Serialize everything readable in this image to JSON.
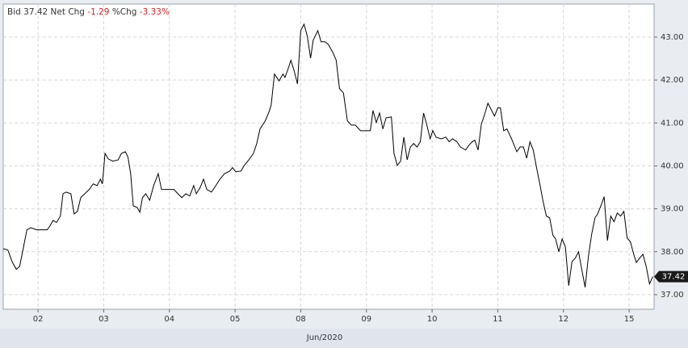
{
  "chart_data": {
    "type": "line",
    "bid_label": "Bid",
    "bid": 37.42,
    "net_chg_label": "Net Chg",
    "net_chg": -1.29,
    "pct_chg_label": "%Chg",
    "pct_chg": {
      "value": -3.33,
      "label": "-3.33%"
    },
    "xlabel": "Jun/2020",
    "color": "#000000",
    "grid": true,
    "xlim": [
      -0.53,
      9.38
    ],
    "ylim": [
      36.66,
      43.77
    ],
    "xticks": [
      {
        "value": 0,
        "label": "02"
      },
      {
        "value": 1,
        "label": "03"
      },
      {
        "value": 2,
        "label": "04"
      },
      {
        "value": 3,
        "label": "05"
      },
      {
        "value": 4,
        "label": "08"
      },
      {
        "value": 5,
        "label": "09"
      },
      {
        "value": 6,
        "label": "10"
      },
      {
        "value": 7,
        "label": "11"
      },
      {
        "value": 8,
        "label": "12"
      },
      {
        "value": 9,
        "label": "15"
      }
    ],
    "yticks": [
      {
        "value": 37,
        "label": "37.00"
      },
      {
        "value": 38,
        "label": "38.00"
      },
      {
        "value": 39,
        "label": "39.00"
      },
      {
        "value": 40,
        "label": "40.00"
      },
      {
        "value": 41,
        "label": "41.00"
      },
      {
        "value": 42,
        "label": "42.00"
      },
      {
        "value": 43,
        "label": "43.00"
      }
    ],
    "x": [
      -0.53,
      -0.46,
      -0.39,
      -0.33,
      -0.28,
      -0.23,
      -0.17,
      -0.11,
      -0.02,
      0.06,
      0.14,
      0.18,
      0.23,
      0.28,
      0.34,
      0.38,
      0.43,
      0.5,
      0.55,
      0.6,
      0.65,
      0.71,
      0.78,
      0.84,
      0.9,
      0.95,
      0.98,
      1.02,
      1.07,
      1.14,
      1.22,
      1.27,
      1.33,
      1.37,
      1.41,
      1.45,
      1.51,
      1.55,
      1.59,
      1.64,
      1.7,
      1.76,
      1.83,
      1.88,
      1.94,
      2.0,
      2.07,
      2.13,
      2.19,
      2.25,
      2.31,
      2.37,
      2.41,
      2.47,
      2.52,
      2.57,
      2.64,
      2.69,
      2.77,
      2.84,
      2.92,
      2.96,
      3.01,
      3.09,
      3.14,
      3.21,
      3.28,
      3.33,
      3.38,
      3.46,
      3.52,
      3.55,
      3.6,
      3.67,
      3.73,
      3.76,
      3.81,
      3.85,
      3.9,
      3.95,
      4.0,
      4.05,
      4.1,
      4.15,
      4.19,
      4.26,
      4.31,
      4.37,
      4.42,
      4.49,
      4.54,
      4.59,
      4.65,
      4.71,
      4.77,
      4.83,
      4.91,
      4.98,
      5.06,
      5.1,
      5.15,
      5.2,
      5.25,
      5.3,
      5.38,
      5.42,
      5.47,
      5.52,
      5.57,
      5.62,
      5.67,
      5.72,
      5.77,
      5.82,
      5.87,
      5.92,
      5.97,
      6.01,
      6.06,
      6.14,
      6.21,
      6.26,
      6.31,
      6.38,
      6.43,
      6.51,
      6.56,
      6.61,
      6.65,
      6.7,
      6.75,
      6.8,
      6.85,
      6.9,
      6.95,
      7.0,
      7.04,
      7.09,
      7.14,
      7.21,
      7.29,
      7.34,
      7.39,
      7.44,
      7.49,
      7.54,
      7.59,
      7.64,
      7.69,
      7.74,
      7.79,
      7.84,
      7.88,
      7.93,
      7.98,
      8.03,
      8.08,
      8.13,
      8.18,
      8.23,
      8.27,
      8.33,
      8.38,
      8.43,
      8.48,
      8.52,
      8.57,
      8.62,
      8.67,
      8.72,
      8.77,
      8.82,
      8.87,
      8.92,
      8.97,
      9.02,
      9.07,
      9.11,
      9.16,
      9.21,
      9.26,
      9.31,
      9.36
    ],
    "values": [
      38.07,
      38.04,
      37.75,
      37.59,
      37.66,
      38.04,
      38.51,
      38.56,
      38.51,
      38.51,
      38.51,
      38.6,
      38.73,
      38.68,
      38.83,
      39.35,
      39.39,
      39.35,
      38.88,
      38.94,
      39.26,
      39.35,
      39.45,
      39.58,
      39.54,
      39.69,
      39.58,
      40.29,
      40.16,
      40.11,
      40.14,
      40.29,
      40.33,
      40.2,
      39.82,
      39.07,
      39.03,
      38.92,
      39.26,
      39.35,
      39.2,
      39.54,
      39.82,
      39.45,
      39.45,
      39.45,
      39.45,
      39.35,
      39.26,
      39.35,
      39.3,
      39.54,
      39.35,
      39.5,
      39.69,
      39.45,
      39.39,
      39.5,
      39.69,
      39.82,
      39.88,
      39.96,
      39.86,
      39.88,
      40.01,
      40.14,
      40.29,
      40.52,
      40.86,
      41.05,
      41.27,
      41.42,
      42.14,
      41.98,
      42.14,
      42.06,
      42.27,
      42.46,
      42.21,
      41.91,
      43.15,
      43.3,
      43.02,
      42.51,
      42.93,
      43.15,
      42.89,
      42.89,
      42.83,
      42.64,
      42.46,
      41.8,
      41.7,
      41.05,
      40.95,
      40.95,
      40.82,
      40.82,
      40.82,
      41.29,
      41.01,
      41.23,
      40.86,
      41.12,
      41.14,
      40.29,
      40.01,
      40.11,
      40.67,
      40.14,
      40.44,
      40.52,
      40.44,
      40.56,
      41.23,
      40.95,
      40.63,
      40.82,
      40.67,
      40.63,
      40.67,
      40.56,
      40.63,
      40.56,
      40.44,
      40.37,
      40.48,
      40.56,
      40.6,
      40.37,
      40.97,
      41.2,
      41.46,
      41.31,
      41.16,
      41.35,
      41.35,
      40.82,
      40.86,
      40.63,
      40.33,
      40.44,
      40.44,
      40.18,
      40.56,
      40.37,
      39.96,
      39.58,
      39.17,
      38.83,
      38.79,
      38.38,
      38.3,
      38.0,
      38.3,
      38.11,
      37.21,
      37.77,
      37.85,
      38.0,
      37.66,
      37.17,
      37.89,
      38.41,
      38.79,
      38.88,
      39.07,
      39.28,
      38.26,
      38.83,
      38.7,
      38.9,
      38.83,
      38.94,
      38.32,
      38.23,
      37.94,
      37.75,
      37.85,
      37.94,
      37.66,
      37.25,
      37.42
    ]
  }
}
